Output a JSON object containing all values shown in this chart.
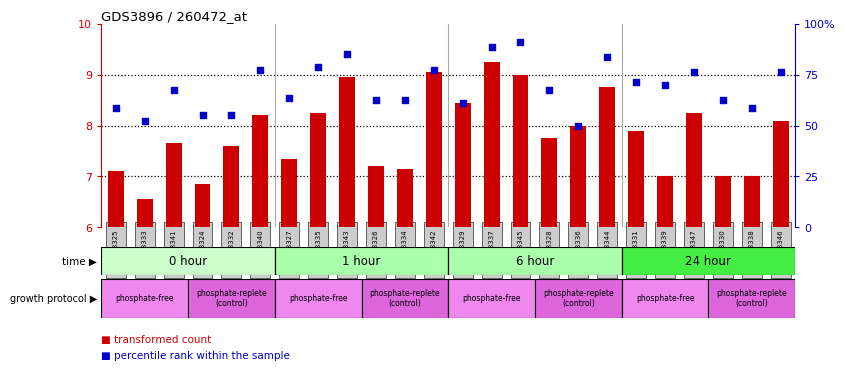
{
  "title": "GDS3896 / 260472_at",
  "samples": [
    "GSM618325",
    "GSM618333",
    "GSM618341",
    "GSM618324",
    "GSM618332",
    "GSM618340",
    "GSM618327",
    "GSM618335",
    "GSM618343",
    "GSM618326",
    "GSM618334",
    "GSM618342",
    "GSM618329",
    "GSM618337",
    "GSM618345",
    "GSM618328",
    "GSM618336",
    "GSM618344",
    "GSM618331",
    "GSM618339",
    "GSM618347",
    "GSM618330",
    "GSM618338",
    "GSM618346"
  ],
  "bar_values": [
    7.1,
    6.55,
    7.65,
    6.85,
    7.6,
    8.2,
    7.35,
    8.25,
    8.95,
    7.2,
    7.15,
    9.05,
    8.45,
    9.25,
    9.0,
    7.75,
    8.0,
    8.75,
    7.9,
    7.0,
    8.25,
    7.0,
    7.0,
    8.1
  ],
  "dot_values": [
    8.35,
    8.1,
    8.7,
    8.2,
    8.2,
    9.1,
    8.55,
    9.15,
    9.4,
    8.5,
    8.5,
    9.1,
    8.45,
    9.55,
    9.65,
    8.7,
    8.0,
    9.35,
    8.85,
    8.8,
    9.05,
    8.5,
    8.35,
    9.05
  ],
  "bar_color": "#cc0000",
  "dot_color": "#0000cc",
  "ylim_left": [
    6,
    10
  ],
  "yticks_left": [
    6,
    7,
    8,
    9,
    10
  ],
  "ylim_right": [
    0,
    100
  ],
  "yticks_right": [
    0,
    25,
    50,
    75,
    100
  ],
  "ytick_right_labels": [
    "0",
    "25",
    "50",
    "75",
    "100%"
  ],
  "time_groups": [
    {
      "label": "0 hour",
      "start": 0,
      "end": 6,
      "color": "#ccffcc"
    },
    {
      "label": "1 hour",
      "start": 6,
      "end": 12,
      "color": "#aaffaa"
    },
    {
      "label": "6 hour",
      "start": 12,
      "end": 18,
      "color": "#aaffaa"
    },
    {
      "label": "24 hour",
      "start": 18,
      "end": 24,
      "color": "#44ee44"
    }
  ],
  "prot_groups": [
    {
      "label": "phosphate-free",
      "start": 0,
      "end": 3,
      "color": "#ee88ee"
    },
    {
      "label": "phosphate-replete\n(control)",
      "start": 3,
      "end": 6,
      "color": "#dd66dd"
    },
    {
      "label": "phosphate-free",
      "start": 6,
      "end": 9,
      "color": "#ee88ee"
    },
    {
      "label": "phosphate-replete\n(control)",
      "start": 9,
      "end": 12,
      "color": "#dd66dd"
    },
    {
      "label": "phosphate-free",
      "start": 12,
      "end": 15,
      "color": "#ee88ee"
    },
    {
      "label": "phosphate-replete\n(control)",
      "start": 15,
      "end": 18,
      "color": "#dd66dd"
    },
    {
      "label": "phosphate-free",
      "start": 18,
      "end": 21,
      "color": "#ee88ee"
    },
    {
      "label": "phosphate-replete\n(control)",
      "start": 21,
      "end": 24,
      "color": "#dd66dd"
    }
  ],
  "group_seps": [
    6,
    12,
    18
  ],
  "hlines": [
    7,
    8,
    9
  ],
  "legend_bar": "transformed count",
  "legend_dot": "percentile rank within the sample",
  "time_label": "time ▶",
  "prot_label": "growth protocol ▶",
  "xticklabel_gray": "#999999",
  "xticklabel_bg": "#cccccc"
}
